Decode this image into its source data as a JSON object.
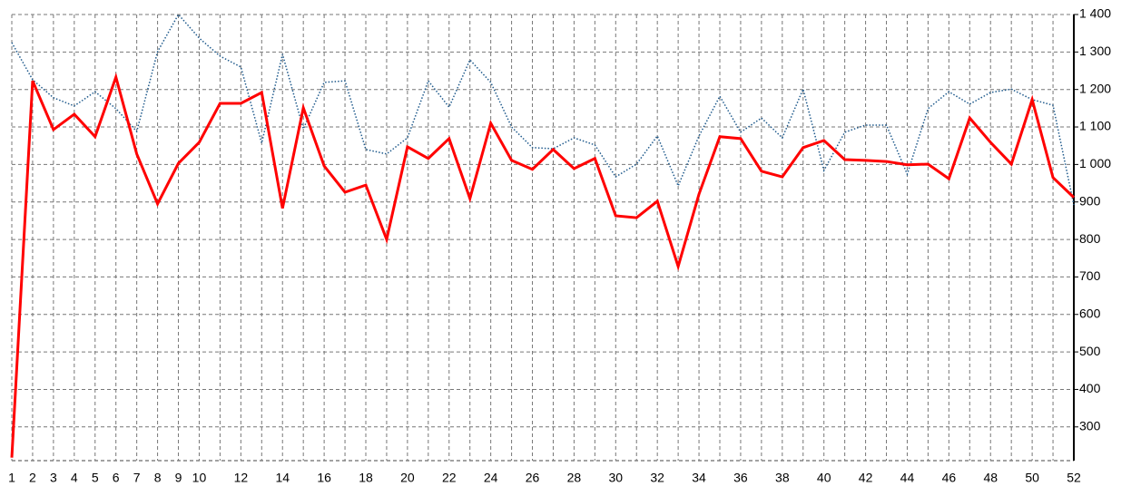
{
  "chart_data": {
    "type": "line",
    "x": [
      1,
      2,
      3,
      4,
      5,
      6,
      7,
      8,
      9,
      10,
      11,
      12,
      13,
      14,
      15,
      16,
      17,
      18,
      19,
      20,
      21,
      22,
      23,
      24,
      25,
      26,
      27,
      28,
      29,
      30,
      31,
      32,
      33,
      34,
      35,
      36,
      37,
      38,
      39,
      40,
      41,
      42,
      43,
      44,
      45,
      46,
      47,
      48,
      49,
      50,
      51,
      52
    ],
    "xlim": [
      1,
      52
    ],
    "xticks": [
      1,
      2,
      3,
      4,
      5,
      6,
      7,
      8,
      9,
      10,
      12,
      14,
      16,
      18,
      20,
      22,
      24,
      26,
      28,
      30,
      32,
      34,
      36,
      38,
      40,
      42,
      44,
      46,
      48,
      50,
      52
    ],
    "ylim": [
      210,
      1400
    ],
    "yticks": [
      300,
      400,
      500,
      600,
      700,
      800,
      900,
      {
        "value": 1000,
        "label": "1 000"
      },
      {
        "value": 1100,
        "label": "1 100"
      },
      {
        "value": 1200,
        "label": "1 200"
      },
      {
        "value": 1300,
        "label": "1 300"
      },
      {
        "value": 1400,
        "label": "1 400"
      }
    ],
    "grid": true,
    "series": [
      {
        "color": "#1f5a8c",
        "style": "dotted",
        "values": [
          1325,
          1226,
          1178,
          1156,
          1194,
          1149,
          1088,
          1301,
          1400,
          1337,
          1289,
          1260,
          1057,
          1294,
          1095,
          1219,
          1223,
          1040,
          1028,
          1071,
          1223,
          1153,
          1279,
          1219,
          1100,
          1045,
          1042,
          1071,
          1052,
          967,
          1001,
          1076,
          943,
          1076,
          1182,
          1086,
          1124,
          1071,
          1201,
          984,
          1086,
          1105,
          1105,
          974,
          1149,
          1194,
          1161,
          1192,
          1201,
          1173,
          1158,
          892
        ]
      },
      {
        "color": "#ff0000",
        "style": "solid",
        "values": [
          218,
          1223,
          1093,
          1134,
          1074,
          1233,
          1028,
          895,
          1003,
          1059,
          1163,
          1163,
          1192,
          883,
          1151,
          996,
          926,
          945,
          800,
          1047,
          1016,
          1069,
          909,
          1110,
          1011,
          987,
          1040,
          989,
          1016,
          863,
          858,
          902,
          728,
          921,
          1074,
          1069,
          982,
          967,
          1045,
          1064,
          1013,
          1011,
          1008,
          999,
          1001,
          962,
          1124,
          1059,
          1001,
          1173,
          965,
          912
        ]
      }
    ]
  }
}
